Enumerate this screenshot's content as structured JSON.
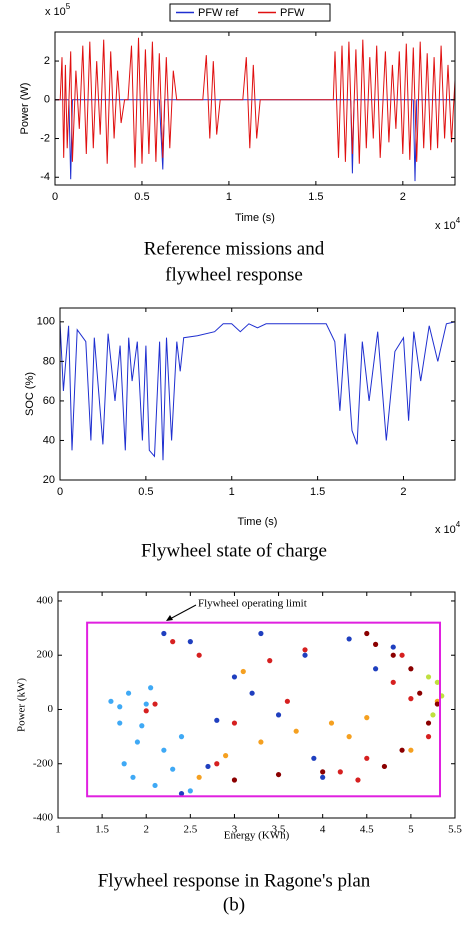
{
  "chart_data": [
    {
      "type": "line",
      "caption": [
        "Reference missions and",
        "flywheel response"
      ],
      "xlabel": "Time (s)",
      "ylabel": "Power (W)",
      "x_multiplier": {
        "text": "x 10",
        "exponent": "4"
      },
      "y_multiplier": {
        "text": "x 10",
        "exponent": "5"
      },
      "xlim": [
        0,
        2.3
      ],
      "xticks": [
        0,
        0.5,
        1,
        1.5,
        2
      ],
      "ylim": [
        -4.4,
        3.5
      ],
      "yticks": [
        -4,
        -2,
        0,
        2
      ],
      "legend": "top-center",
      "series": [
        {
          "name": "PFW ref",
          "color": "#1f2fd0",
          "x": [
            0,
            0.08,
            0.09,
            0.1,
            0.6,
            0.62,
            0.63,
            1.7,
            1.71,
            1.72,
            2.06,
            2.07,
            2.08,
            2.3
          ],
          "values": [
            0,
            0,
            -4.1,
            0,
            0,
            -3.6,
            0,
            0,
            -3.8,
            0,
            0,
            -4.2,
            0,
            0
          ]
        },
        {
          "name": "PFW",
          "color": "#e01010",
          "x": [
            0,
            0.03,
            0.04,
            0.05,
            0.06,
            0.07,
            0.09,
            0.1,
            0.12,
            0.14,
            0.16,
            0.18,
            0.2,
            0.22,
            0.24,
            0.26,
            0.28,
            0.3,
            0.32,
            0.34,
            0.36,
            0.38,
            0.4,
            0.42,
            0.44,
            0.46,
            0.48,
            0.5,
            0.52,
            0.54,
            0.56,
            0.58,
            0.6,
            0.62,
            0.64,
            0.66,
            0.68,
            0.7,
            0.85,
            0.87,
            0.89,
            0.91,
            0.93,
            0.95,
            1.08,
            1.1,
            1.12,
            1.14,
            1.16,
            1.18,
            1.6,
            1.61,
            1.63,
            1.65,
            1.67,
            1.69,
            1.71,
            1.73,
            1.75,
            1.77,
            1.79,
            1.81,
            1.83,
            1.85,
            1.87,
            1.9,
            1.92,
            1.94,
            1.96,
            1.98,
            2.0,
            2.02,
            2.04,
            2.06,
            2.08,
            2.1,
            2.12,
            2.14,
            2.16,
            2.18,
            2.2,
            2.22,
            2.24,
            2.26,
            2.28,
            2.3
          ],
          "values": [
            0,
            0,
            2.2,
            -3.0,
            1.8,
            -2.5,
            2.5,
            -3.2,
            1.5,
            -1.5,
            2.8,
            -2.8,
            3.0,
            -2.5,
            2.0,
            -1.8,
            3.1,
            -3.3,
            2.5,
            -2.0,
            1.5,
            -1.2,
            0,
            0,
            2.8,
            -3.5,
            3.2,
            -3.3,
            2.6,
            -2.8,
            3.0,
            -3.2,
            2.4,
            -3.0,
            2.2,
            -2.5,
            1.5,
            0,
            0,
            2.3,
            -2.0,
            2.0,
            -1.8,
            0,
            0,
            2.2,
            -2.5,
            1.8,
            -2.0,
            0,
            0,
            2.5,
            -3.0,
            2.8,
            -3.2,
            3.0,
            -2.8,
            2.6,
            -3.3,
            3.1,
            -2.5,
            2.2,
            -2.0,
            2.8,
            -3.0,
            2.5,
            -2.2,
            1.8,
            -1.5,
            2.5,
            -2.8,
            2.9,
            -3.1,
            2.7,
            -3.2,
            3.0,
            -2.5,
            2.4,
            -2.6,
            2.2,
            -2.5,
            2.8,
            -2.0,
            1.8,
            -2.2,
            1.0
          ]
        }
      ]
    },
    {
      "type": "line",
      "caption": [
        "Flywheel state of charge"
      ],
      "xlabel": "Time (s)",
      "ylabel": "SOC (%)",
      "x_multiplier": {
        "text": "x 10",
        "exponent": "4"
      },
      "xlim": [
        0,
        2.3
      ],
      "xticks": [
        0,
        0.5,
        1,
        1.5,
        2
      ],
      "ylim": [
        20,
        107
      ],
      "yticks": [
        20,
        40,
        60,
        80,
        100
      ],
      "series": [
        {
          "color": "#1f2fd0",
          "x": [
            0,
            0.02,
            0.05,
            0.07,
            0.1,
            0.15,
            0.18,
            0.2,
            0.25,
            0.28,
            0.32,
            0.35,
            0.38,
            0.4,
            0.42,
            0.45,
            0.48,
            0.5,
            0.52,
            0.55,
            0.58,
            0.6,
            0.62,
            0.65,
            0.68,
            0.7,
            0.72,
            0.8,
            0.9,
            0.95,
            1.0,
            1.05,
            1.1,
            1.15,
            1.2,
            1.25,
            1.3,
            1.35,
            1.4,
            1.5,
            1.55,
            1.6,
            1.63,
            1.66,
            1.7,
            1.73,
            1.76,
            1.8,
            1.85,
            1.9,
            1.95,
            2.0,
            2.03,
            2.06,
            2.1,
            2.15,
            2.2,
            2.25,
            2.3
          ],
          "values": [
            100,
            65,
            98,
            35,
            96,
            90,
            40,
            92,
            38,
            94,
            60,
            88,
            35,
            92,
            70,
            90,
            40,
            88,
            35,
            32,
            90,
            30,
            92,
            40,
            90,
            75,
            92,
            93,
            95,
            99,
            99,
            95,
            99,
            97,
            99,
            99,
            99,
            99,
            99,
            99,
            99,
            90,
            55,
            94,
            45,
            38,
            90,
            60,
            95,
            40,
            85,
            92,
            50,
            95,
            70,
            98,
            80,
            99,
            100
          ]
        }
      ]
    },
    {
      "type": "scatter",
      "caption": [
        "Flywheel response in Ragone's plan"
      ],
      "xlabel": "Energy (KWh)",
      "ylabel": "Power (kW)",
      "annotation": "Flywheel operating limit",
      "limit_box": {
        "xlim": [
          1.33,
          5.33
        ],
        "ylim": [
          -320,
          320
        ],
        "color": "#e020e0"
      },
      "xlim": [
        1,
        5.5
      ],
      "xticks": [
        1,
        1.5,
        2,
        2.5,
        3,
        3.5,
        4,
        4.5,
        5,
        5.5
      ],
      "ylim": [
        -400,
        433
      ],
      "yticks": [
        -400,
        -200,
        0,
        200,
        400
      ],
      "series": [
        {
          "color": "#3fa9f5",
          "x": [
            1.6,
            1.7,
            1.8,
            1.9,
            2.0,
            1.75,
            1.85,
            2.1,
            2.2,
            1.95,
            2.3,
            2.5,
            1.7,
            2.05,
            2.4
          ],
          "values": [
            30,
            -50,
            60,
            -120,
            20,
            -200,
            -250,
            -280,
            -150,
            -60,
            -220,
            -300,
            10,
            80,
            -100
          ]
        },
        {
          "color": "#1f3fbf",
          "x": [
            2.2,
            2.5,
            2.8,
            3.0,
            3.2,
            3.5,
            3.8,
            4.0,
            4.3,
            4.6,
            2.7,
            3.3,
            3.9,
            2.4,
            4.8
          ],
          "values": [
            280,
            250,
            -40,
            120,
            60,
            -20,
            200,
            -250,
            260,
            150,
            -210,
            280,
            -180,
            -310,
            230
          ]
        },
        {
          "color": "#f5a020",
          "x": [
            2.9,
            3.3,
            3.7,
            4.1,
            4.5,
            5.0,
            5.3,
            3.1,
            4.3,
            2.6
          ],
          "values": [
            -170,
            -120,
            -80,
            -50,
            -30,
            -150,
            30,
            140,
            -100,
            -250
          ]
        },
        {
          "color": "#d62020",
          "x": [
            2.1,
            2.3,
            2.6,
            3.0,
            3.4,
            3.8,
            4.2,
            4.5,
            4.8,
            5.0,
            5.2,
            2.8,
            3.6,
            4.4,
            4.9,
            2.0
          ],
          "values": [
            20,
            250,
            200,
            -50,
            180,
            220,
            -230,
            -180,
            100,
            40,
            -100,
            -200,
            30,
            -260,
            200,
            -5
          ]
        },
        {
          "color": "#8b0000",
          "x": [
            4.6,
            4.8,
            5.0,
            5.1,
            5.2,
            4.7,
            4.9,
            3.0,
            3.5,
            4.0,
            4.5,
            5.3
          ],
          "values": [
            240,
            200,
            150,
            60,
            -50,
            -210,
            -150,
            -260,
            -240,
            -230,
            280,
            20
          ]
        },
        {
          "color": "#c0e040",
          "x": [
            5.3,
            5.35,
            5.25,
            5.2
          ],
          "values": [
            100,
            50,
            -20,
            120
          ]
        }
      ]
    }
  ],
  "figure_label": "(b)"
}
